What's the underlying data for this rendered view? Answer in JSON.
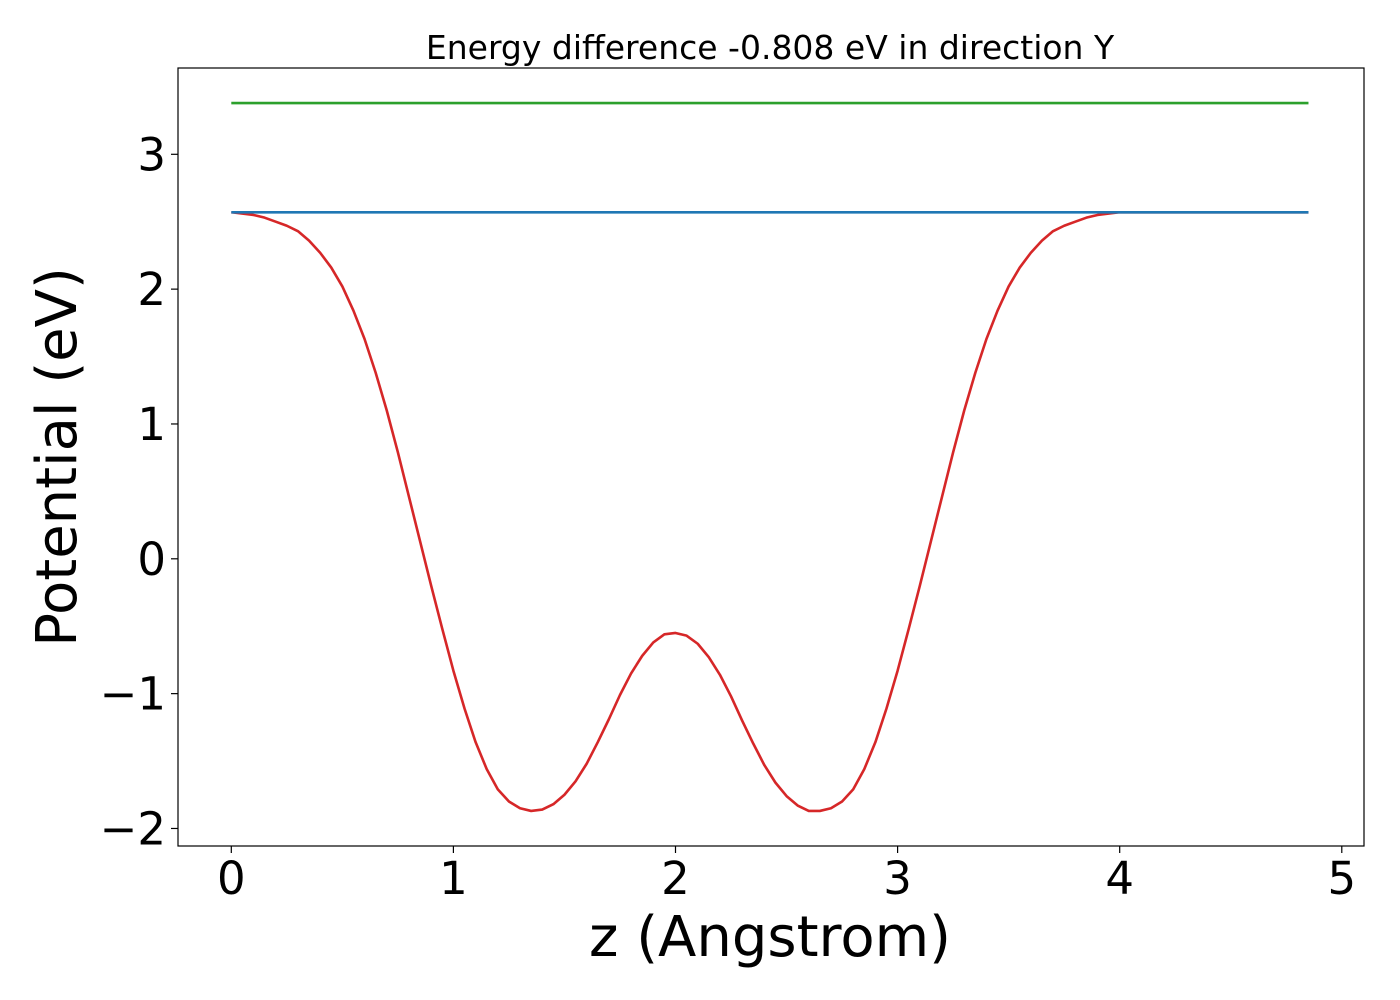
{
  "chart_data": {
    "type": "line",
    "title": "Energy difference -0.808 eV in direction Y",
    "xlabel": "z (Angstrom)",
    "ylabel": "Potential (eV)",
    "xlim": [
      -0.24,
      5.1
    ],
    "ylim": [
      -2.13,
      3.64
    ],
    "xticks": [
      0,
      1,
      2,
      3,
      4,
      5
    ],
    "xtick_labels": [
      "0",
      "1",
      "2",
      "3",
      "4",
      "5"
    ],
    "yticks": [
      -2,
      -1,
      0,
      1,
      2,
      3
    ],
    "ytick_labels": [
      "−2",
      "−1",
      "0",
      "1",
      "2",
      "3"
    ],
    "grid": false,
    "legend": "none",
    "series": [
      {
        "color": "#d62728",
        "x": [
          0,
          0.05,
          0.1,
          0.15,
          0.2,
          0.25,
          0.3,
          0.35,
          0.4,
          0.45,
          0.5,
          0.55,
          0.6,
          0.65,
          0.7,
          0.75,
          0.8,
          0.85,
          0.9,
          0.95,
          1.0,
          1.05,
          1.1,
          1.15,
          1.2,
          1.25,
          1.3,
          1.35,
          1.4,
          1.45,
          1.5,
          1.55,
          1.6,
          1.65,
          1.7,
          1.75,
          1.8,
          1.85,
          1.9,
          1.95,
          2.0,
          2.05,
          2.1,
          2.15,
          2.2,
          2.25,
          2.3,
          2.35,
          2.4,
          2.45,
          2.5,
          2.55,
          2.6,
          2.65,
          2.7,
          2.75,
          2.8,
          2.85,
          2.9,
          2.95,
          3.0,
          3.05,
          3.1,
          3.15,
          3.2,
          3.25,
          3.3,
          3.35,
          3.4,
          3.45,
          3.5,
          3.55,
          3.6,
          3.65,
          3.7,
          3.75,
          3.8,
          3.85,
          3.9,
          3.95,
          4.0,
          4.05,
          4.1,
          4.15,
          4.2,
          4.25,
          4.3,
          4.35,
          4.4,
          4.45,
          4.5,
          4.55,
          4.6,
          4.65,
          4.7,
          4.75,
          4.8,
          4.85
        ],
        "y": [
          2.57,
          2.56,
          2.55,
          2.53,
          2.5,
          2.47,
          2.43,
          2.36,
          2.27,
          2.16,
          2.02,
          1.84,
          1.63,
          1.38,
          1.1,
          0.79,
          0.46,
          0.13,
          -0.2,
          -0.52,
          -0.83,
          -1.11,
          -1.36,
          -1.56,
          -1.71,
          -1.8,
          -1.85,
          -1.87,
          -1.86,
          -1.82,
          -1.75,
          -1.65,
          -1.52,
          -1.36,
          -1.19,
          -1.01,
          -0.85,
          -0.72,
          -0.62,
          -0.56,
          -0.55,
          -0.57,
          -0.63,
          -0.73,
          -0.86,
          -1.02,
          -1.2,
          -1.37,
          -1.53,
          -1.66,
          -1.76,
          -1.83,
          -1.87,
          -1.87,
          -1.85,
          -1.8,
          -1.71,
          -1.56,
          -1.36,
          -1.11,
          -0.83,
          -0.52,
          -0.2,
          0.13,
          0.46,
          0.79,
          1.1,
          1.38,
          1.63,
          1.84,
          2.02,
          2.16,
          2.27,
          2.36,
          2.43,
          2.47,
          2.5,
          2.53,
          2.55,
          2.56,
          2.57,
          2.57,
          2.57,
          2.57,
          2.57,
          2.57,
          2.57,
          2.57,
          2.57,
          2.57,
          2.57,
          2.57,
          2.57,
          2.57,
          2.57,
          2.57,
          2.57,
          2.57
        ]
      },
      {
        "color": "#1f77b4",
        "x": [
          0,
          4.85
        ],
        "y": [
          2.57,
          2.57
        ]
      },
      {
        "color": "#2ca02c",
        "x": [
          0,
          4.85
        ],
        "y": [
          3.38,
          3.38
        ]
      }
    ]
  }
}
